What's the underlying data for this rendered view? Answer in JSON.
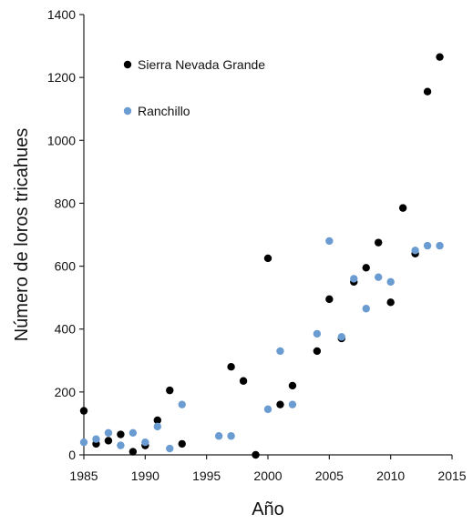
{
  "chart_data": {
    "type": "scatter",
    "title": "",
    "xlabel": "Año",
    "ylabel": "Número de loros tricahues",
    "xlim": [
      1985,
      2015
    ],
    "ylim": [
      0,
      1400
    ],
    "xticks": [
      1985,
      1990,
      1995,
      2000,
      2005,
      2010,
      2015
    ],
    "yticks": [
      0,
      200,
      400,
      600,
      800,
      1000,
      1200,
      1400
    ],
    "grid": false,
    "legend_position": "top-left",
    "series": [
      {
        "name": "Sierra Nevada Grande",
        "color": "#000000",
        "points": [
          [
            1985,
            140
          ],
          [
            1986,
            35
          ],
          [
            1987,
            45
          ],
          [
            1988,
            65
          ],
          [
            1989,
            10
          ],
          [
            1990,
            30
          ],
          [
            1991,
            110
          ],
          [
            1992,
            205
          ],
          [
            1993,
            35
          ],
          [
            1997,
            280
          ],
          [
            1998,
            235
          ],
          [
            1999,
            0
          ],
          [
            2000,
            625
          ],
          [
            2001,
            160
          ],
          [
            2002,
            220
          ],
          [
            2004,
            330
          ],
          [
            2005,
            495
          ],
          [
            2006,
            370
          ],
          [
            2007,
            550
          ],
          [
            2008,
            595
          ],
          [
            2009,
            675
          ],
          [
            2010,
            485
          ],
          [
            2011,
            785
          ],
          [
            2012,
            640
          ],
          [
            2013,
            1155
          ],
          [
            2014,
            1265
          ]
        ]
      },
      {
        "name": "Ranchillo",
        "color": "#6a9bd1",
        "points": [
          [
            1985,
            40
          ],
          [
            1986,
            50
          ],
          [
            1987,
            70
          ],
          [
            1988,
            30
          ],
          [
            1989,
            70
          ],
          [
            1990,
            40
          ],
          [
            1991,
            90
          ],
          [
            1992,
            20
          ],
          [
            1993,
            160
          ],
          [
            1996,
            60
          ],
          [
            1997,
            60
          ],
          [
            2000,
            145
          ],
          [
            2001,
            330
          ],
          [
            2002,
            160
          ],
          [
            2004,
            385
          ],
          [
            2005,
            680
          ],
          [
            2006,
            375
          ],
          [
            2007,
            560
          ],
          [
            2008,
            465
          ],
          [
            2009,
            565
          ],
          [
            2010,
            550
          ],
          [
            2012,
            650
          ],
          [
            2013,
            665
          ],
          [
            2014,
            665
          ]
        ]
      }
    ]
  }
}
